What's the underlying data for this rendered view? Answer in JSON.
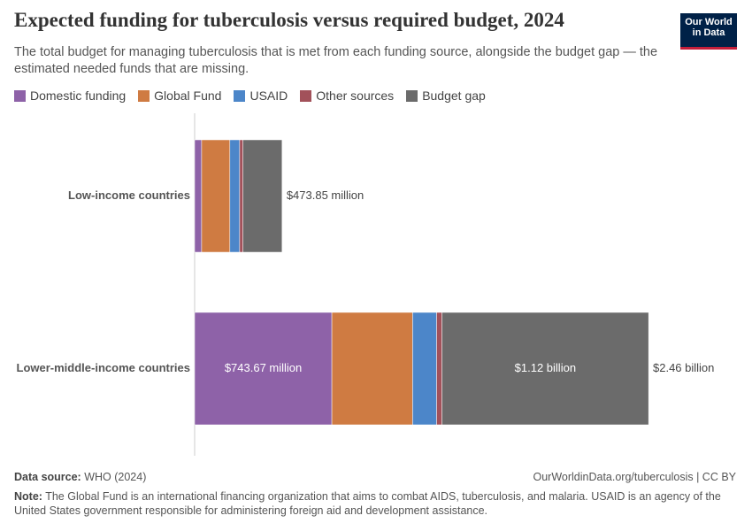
{
  "chart_data": {
    "type": "stacked-bar",
    "title": "Expected funding for tuberculosis versus required budget, 2024",
    "subtitle": "The total budget for managing tuberculosis that is met from each funding source, alongside the budget gap — the estimated needed funds that are missing.",
    "logo": "Our World in Data",
    "categories": [
      "Low-income countries",
      "Lower-middle-income countries"
    ],
    "series": [
      {
        "name": "Domestic funding",
        "color": "#8e62a8",
        "values": [
          38000000,
          743670000
        ],
        "value_labels": [
          null,
          "$743.67 million"
        ]
      },
      {
        "name": "Global Fund",
        "color": "#cf7b42",
        "values": [
          153000000,
          438000000
        ]
      },
      {
        "name": "USAID",
        "color": "#4c86c9",
        "values": [
          53000000,
          130000000
        ]
      },
      {
        "name": "Other sources",
        "color": "#a2515a",
        "values": [
          18000000,
          29000000
        ]
      },
      {
        "name": "Budget gap",
        "color": "#6b6b6b",
        "values": [
          211850000,
          1120000000
        ],
        "value_labels": [
          null,
          "$1.12 billion"
        ]
      }
    ],
    "totals": [
      473850000,
      2460000000
    ],
    "total_labels": [
      "$473.85 million",
      "$2.46 billion"
    ],
    "xlim": [
      0,
      2460000000
    ],
    "source_label": "Data source:",
    "source": "WHO (2024)",
    "url": "OurWorldinData.org/tuberculosis | CC BY",
    "note_label": "Note:",
    "note": "The Global Fund is an international financing organization that aims to combat AIDS, tuberculosis, and malaria. USAID is an agency of the United States government responsible for administering foreign aid and development assistance."
  }
}
